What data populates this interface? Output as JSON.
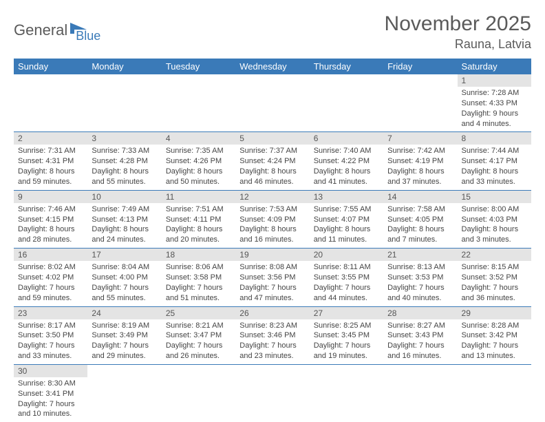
{
  "logo": {
    "text1": "General",
    "text2": "Blue",
    "text1_color": "#5a5a5a",
    "text2_color": "#3a7ab8"
  },
  "header": {
    "month": "November 2025",
    "location": "Rauna, Latvia"
  },
  "calendar": {
    "day_header_bg": "#3a7ab8",
    "day_header_fg": "#ffffff",
    "daynum_bg": "#e4e4e4",
    "border_color": "#3a7ab8",
    "days_of_week": [
      "Sunday",
      "Monday",
      "Tuesday",
      "Wednesday",
      "Thursday",
      "Friday",
      "Saturday"
    ],
    "first_weekday_index": 6,
    "days": [
      {
        "n": 1,
        "sunrise": "7:28 AM",
        "sunset": "4:33 PM",
        "daylight": "9 hours and 4 minutes."
      },
      {
        "n": 2,
        "sunrise": "7:31 AM",
        "sunset": "4:31 PM",
        "daylight": "8 hours and 59 minutes."
      },
      {
        "n": 3,
        "sunrise": "7:33 AM",
        "sunset": "4:28 PM",
        "daylight": "8 hours and 55 minutes."
      },
      {
        "n": 4,
        "sunrise": "7:35 AM",
        "sunset": "4:26 PM",
        "daylight": "8 hours and 50 minutes."
      },
      {
        "n": 5,
        "sunrise": "7:37 AM",
        "sunset": "4:24 PM",
        "daylight": "8 hours and 46 minutes."
      },
      {
        "n": 6,
        "sunrise": "7:40 AM",
        "sunset": "4:22 PM",
        "daylight": "8 hours and 41 minutes."
      },
      {
        "n": 7,
        "sunrise": "7:42 AM",
        "sunset": "4:19 PM",
        "daylight": "8 hours and 37 minutes."
      },
      {
        "n": 8,
        "sunrise": "7:44 AM",
        "sunset": "4:17 PM",
        "daylight": "8 hours and 33 minutes."
      },
      {
        "n": 9,
        "sunrise": "7:46 AM",
        "sunset": "4:15 PM",
        "daylight": "8 hours and 28 minutes."
      },
      {
        "n": 10,
        "sunrise": "7:49 AM",
        "sunset": "4:13 PM",
        "daylight": "8 hours and 24 minutes."
      },
      {
        "n": 11,
        "sunrise": "7:51 AM",
        "sunset": "4:11 PM",
        "daylight": "8 hours and 20 minutes."
      },
      {
        "n": 12,
        "sunrise": "7:53 AM",
        "sunset": "4:09 PM",
        "daylight": "8 hours and 16 minutes."
      },
      {
        "n": 13,
        "sunrise": "7:55 AM",
        "sunset": "4:07 PM",
        "daylight": "8 hours and 11 minutes."
      },
      {
        "n": 14,
        "sunrise": "7:58 AM",
        "sunset": "4:05 PM",
        "daylight": "8 hours and 7 minutes."
      },
      {
        "n": 15,
        "sunrise": "8:00 AM",
        "sunset": "4:03 PM",
        "daylight": "8 hours and 3 minutes."
      },
      {
        "n": 16,
        "sunrise": "8:02 AM",
        "sunset": "4:02 PM",
        "daylight": "7 hours and 59 minutes."
      },
      {
        "n": 17,
        "sunrise": "8:04 AM",
        "sunset": "4:00 PM",
        "daylight": "7 hours and 55 minutes."
      },
      {
        "n": 18,
        "sunrise": "8:06 AM",
        "sunset": "3:58 PM",
        "daylight": "7 hours and 51 minutes."
      },
      {
        "n": 19,
        "sunrise": "8:08 AM",
        "sunset": "3:56 PM",
        "daylight": "7 hours and 47 minutes."
      },
      {
        "n": 20,
        "sunrise": "8:11 AM",
        "sunset": "3:55 PM",
        "daylight": "7 hours and 44 minutes."
      },
      {
        "n": 21,
        "sunrise": "8:13 AM",
        "sunset": "3:53 PM",
        "daylight": "7 hours and 40 minutes."
      },
      {
        "n": 22,
        "sunrise": "8:15 AM",
        "sunset": "3:52 PM",
        "daylight": "7 hours and 36 minutes."
      },
      {
        "n": 23,
        "sunrise": "8:17 AM",
        "sunset": "3:50 PM",
        "daylight": "7 hours and 33 minutes."
      },
      {
        "n": 24,
        "sunrise": "8:19 AM",
        "sunset": "3:49 PM",
        "daylight": "7 hours and 29 minutes."
      },
      {
        "n": 25,
        "sunrise": "8:21 AM",
        "sunset": "3:47 PM",
        "daylight": "7 hours and 26 minutes."
      },
      {
        "n": 26,
        "sunrise": "8:23 AM",
        "sunset": "3:46 PM",
        "daylight": "7 hours and 23 minutes."
      },
      {
        "n": 27,
        "sunrise": "8:25 AM",
        "sunset": "3:45 PM",
        "daylight": "7 hours and 19 minutes."
      },
      {
        "n": 28,
        "sunrise": "8:27 AM",
        "sunset": "3:43 PM",
        "daylight": "7 hours and 16 minutes."
      },
      {
        "n": 29,
        "sunrise": "8:28 AM",
        "sunset": "3:42 PM",
        "daylight": "7 hours and 13 minutes."
      },
      {
        "n": 30,
        "sunrise": "8:30 AM",
        "sunset": "3:41 PM",
        "daylight": "7 hours and 10 minutes."
      }
    ],
    "labels": {
      "sunrise": "Sunrise:",
      "sunset": "Sunset:",
      "daylight": "Daylight:"
    }
  }
}
